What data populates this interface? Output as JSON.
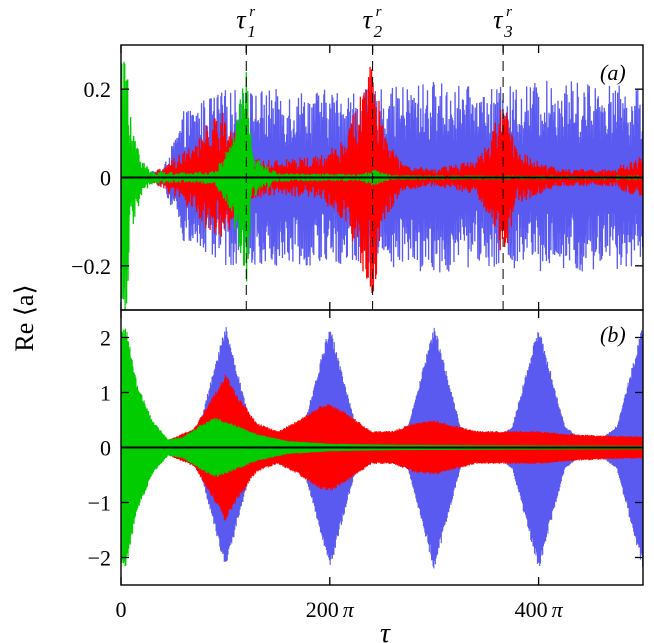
{
  "chart_data": [
    {
      "type": "line",
      "panel_label": "(a)",
      "ylabel": "Re ⟨a⟩",
      "xlim": [
        0,
        500
      ],
      "ylim": [
        -0.3,
        0.3
      ],
      "yticks": [
        -0.2,
        0,
        0.2
      ],
      "ytick_labels": [
        "−0.2",
        "0",
        "0.2"
      ],
      "top_markers": [
        {
          "label": "τ",
          "sub": "1",
          "sup": "r",
          "x": 120
        },
        {
          "label": "τ",
          "sub": "2",
          "sup": "r",
          "x": 241
        },
        {
          "label": "τ",
          "sub": "3",
          "sup": "r",
          "x": 366
        }
      ],
      "series": [
        {
          "color": "#5a5af0",
          "envelope": [
            [
              0,
              0.0
            ],
            [
              40,
              0.02
            ],
            [
              50,
              0.08
            ],
            [
              60,
              0.15
            ],
            [
              80,
              0.18
            ],
            [
              100,
              0.2
            ],
            [
              140,
              0.2
            ],
            [
              200,
              0.2
            ],
            [
              250,
              0.2
            ],
            [
              300,
              0.22
            ],
            [
              350,
              0.2
            ],
            [
              400,
              0.22
            ],
            [
              450,
              0.22
            ],
            [
              500,
              0.2
            ]
          ]
        },
        {
          "color": "#ff0000",
          "envelope": [
            [
              0,
              0.0
            ],
            [
              30,
              0.01
            ],
            [
              60,
              0.06
            ],
            [
              80,
              0.12
            ],
            [
              100,
              0.15
            ],
            [
              120,
              0.05
            ],
            [
              150,
              0.04
            ],
            [
              190,
              0.05
            ],
            [
              215,
              0.1
            ],
            [
              230,
              0.2
            ],
            [
              241,
              0.28
            ],
            [
              252,
              0.1
            ],
            [
              270,
              0.03
            ],
            [
              300,
              0.02
            ],
            [
              340,
              0.04
            ],
            [
              355,
              0.1
            ],
            [
              366,
              0.19
            ],
            [
              380,
              0.06
            ],
            [
              420,
              0.02
            ],
            [
              470,
              0.02
            ],
            [
              500,
              0.05
            ]
          ]
        },
        {
          "color": "#00cc00",
          "envelope": [
            [
              0,
              0.3
            ],
            [
              5,
              0.3
            ],
            [
              10,
              0.12
            ],
            [
              20,
              0.04
            ],
            [
              30,
              0.015
            ],
            [
              60,
              0.012
            ],
            [
              90,
              0.015
            ],
            [
              105,
              0.08
            ],
            [
              112,
              0.15
            ],
            [
              120,
              0.25
            ],
            [
              126,
              0.05
            ],
            [
              150,
              0.01
            ],
            [
              230,
              0.008
            ],
            [
              241,
              0.02
            ],
            [
              260,
              0.005
            ],
            [
              500,
              0.003
            ]
          ]
        }
      ]
    },
    {
      "type": "line",
      "panel_label": "(b)",
      "xlabel": "τ",
      "xlim": [
        0,
        500
      ],
      "ylim": [
        -2.5,
        2.5
      ],
      "xticks": [
        0,
        200,
        400
      ],
      "xtick_labels": [
        "0",
        "200 π",
        "400 π"
      ],
      "yticks": [
        -2,
        -1,
        0,
        1,
        2
      ],
      "ytick_labels": [
        "−2",
        "−1",
        "0",
        "1",
        "2"
      ],
      "series": [
        {
          "color": "#5a5af0",
          "envelope": [
            [
              0,
              0.0
            ],
            [
              50,
              0.0
            ],
            [
              75,
              0.4
            ],
            [
              90,
              1.5
            ],
            [
              100,
              2.25
            ],
            [
              110,
              1.5
            ],
            [
              125,
              0.4
            ],
            [
              150,
              0.0
            ],
            [
              175,
              0.4
            ],
            [
              190,
              1.5
            ],
            [
              200,
              2.25
            ],
            [
              210,
              1.5
            ],
            [
              225,
              0.4
            ],
            [
              250,
              0.0
            ],
            [
              275,
              0.4
            ],
            [
              290,
              1.5
            ],
            [
              300,
              2.25
            ],
            [
              310,
              1.5
            ],
            [
              325,
              0.4
            ],
            [
              350,
              0.0
            ],
            [
              375,
              0.4
            ],
            [
              390,
              1.5
            ],
            [
              400,
              2.25
            ],
            [
              410,
              1.5
            ],
            [
              425,
              0.4
            ],
            [
              450,
              0.0
            ],
            [
              475,
              0.4
            ],
            [
              490,
              1.5
            ],
            [
              500,
              2.25
            ]
          ]
        },
        {
          "color": "#ff0000",
          "envelope": [
            [
              0,
              0.0
            ],
            [
              40,
              0.1
            ],
            [
              70,
              0.35
            ],
            [
              90,
              1.0
            ],
            [
              100,
              1.35
            ],
            [
              110,
              1.0
            ],
            [
              130,
              0.45
            ],
            [
              150,
              0.3
            ],
            [
              170,
              0.5
            ],
            [
              190,
              0.75
            ],
            [
              200,
              0.8
            ],
            [
              215,
              0.65
            ],
            [
              240,
              0.3
            ],
            [
              260,
              0.3
            ],
            [
              280,
              0.45
            ],
            [
              300,
              0.5
            ],
            [
              320,
              0.4
            ],
            [
              340,
              0.3
            ],
            [
              370,
              0.3
            ],
            [
              400,
              0.3
            ],
            [
              430,
              0.25
            ],
            [
              460,
              0.22
            ],
            [
              500,
              0.2
            ]
          ]
        },
        {
          "color": "#00cc00",
          "envelope": [
            [
              0,
              2.2
            ],
            [
              5,
              2.2
            ],
            [
              15,
              1.2
            ],
            [
              30,
              0.5
            ],
            [
              45,
              0.15
            ],
            [
              60,
              0.2
            ],
            [
              75,
              0.4
            ],
            [
              90,
              0.55
            ],
            [
              105,
              0.45
            ],
            [
              130,
              0.25
            ],
            [
              160,
              0.12
            ],
            [
              200,
              0.07
            ],
            [
              260,
              0.05
            ],
            [
              350,
              0.04
            ],
            [
              500,
              0.03
            ]
          ]
        }
      ]
    }
  ]
}
